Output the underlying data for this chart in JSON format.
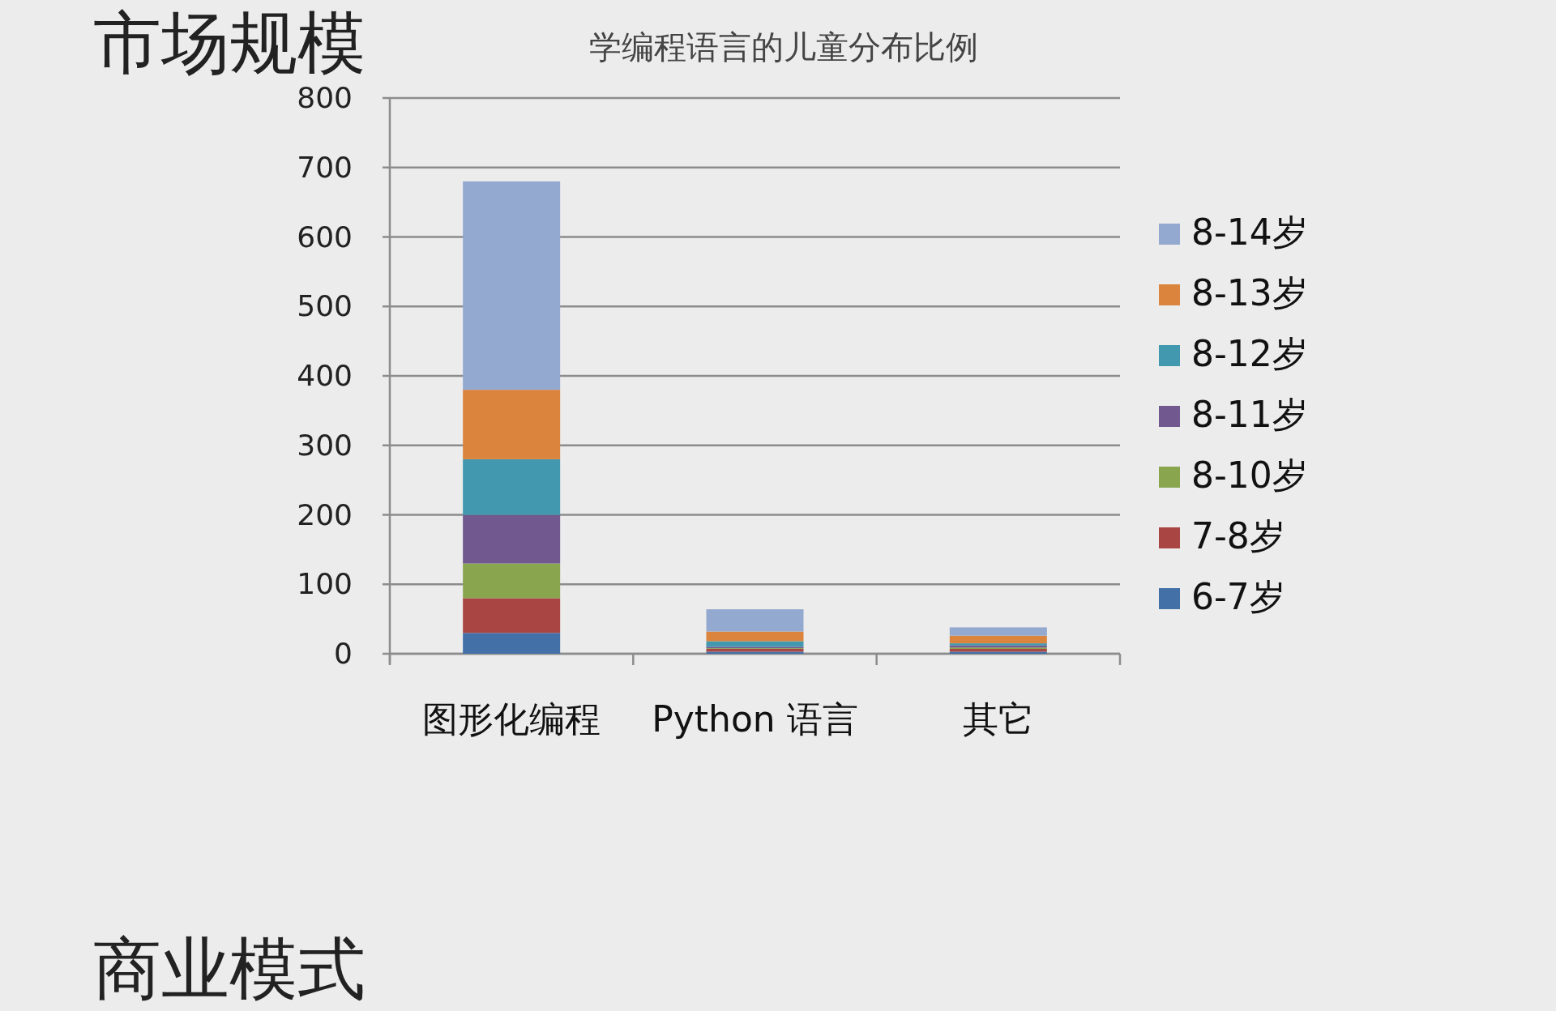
{
  "chart_data": {
    "type": "bar",
    "title": "学编程语言的儿童分布比例",
    "categories": [
      "图形化编程",
      "Python 语言",
      "其它"
    ],
    "stacked": true,
    "grid": "y",
    "legend": "right",
    "ylim": [
      0,
      800
    ],
    "yticks": [
      0,
      100,
      200,
      300,
      400,
      500,
      600,
      700,
      800
    ],
    "series": [
      {
        "name": "6-7岁",
        "color": "#4470a8",
        "values": [
          30,
          3,
          3
        ]
      },
      {
        "name": "7-8岁",
        "color": "#a94644",
        "values": [
          50,
          4,
          4
        ]
      },
      {
        "name": "8-10岁",
        "color": "#89a54e",
        "values": [
          50,
          1,
          2
        ]
      },
      {
        "name": "8-11岁",
        "color": "#71588f",
        "values": [
          70,
          2,
          3
        ]
      },
      {
        "name": "8-12岁",
        "color": "#4198af",
        "values": [
          80,
          8,
          3
        ]
      },
      {
        "name": "8-13岁",
        "color": "#db843d",
        "values": [
          100,
          14,
          11
        ]
      },
      {
        "name": "8-14岁",
        "color": "#93a9cf",
        "values": [
          300,
          32,
          12
        ]
      }
    ],
    "annotations": [
      "市场规模",
      "商业模式"
    ]
  }
}
